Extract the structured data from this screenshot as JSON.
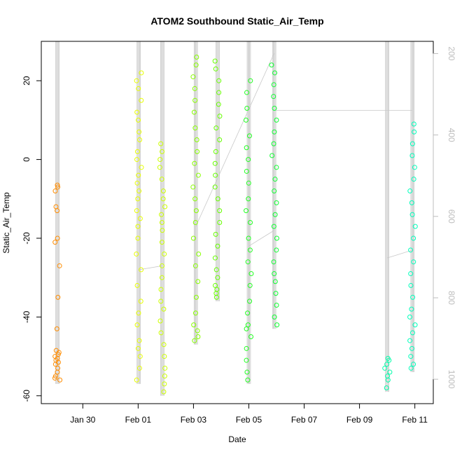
{
  "chart_data": {
    "type": "scatter",
    "title": "ATOM2 Southbound Static_Air_Temp",
    "xlabel": "Date",
    "ylabel": "Static_Air_Temp",
    "x_range": [
      "2017-01-28T12:00",
      "2017-02-11T16:00"
    ],
    "ylim": [
      -62,
      30
    ],
    "x_ticks": [
      {
        "date": "2017-01-30",
        "label": "Jan 30"
      },
      {
        "date": "2017-02-01",
        "label": "Feb 01"
      },
      {
        "date": "2017-02-03",
        "label": "Feb 03"
      },
      {
        "date": "2017-02-05",
        "label": "Feb 05"
      },
      {
        "date": "2017-02-07",
        "label": "Feb 07"
      },
      {
        "date": "2017-02-09",
        "label": "Feb 09"
      },
      {
        "date": "2017-02-11",
        "label": "Feb 11"
      }
    ],
    "y_ticks": [
      -60,
      -40,
      -20,
      0,
      20
    ],
    "secondary_axis": {
      "description": "pressure (altitude) on right axis, inverted",
      "range": [
        1060,
        170
      ],
      "ticks": [
        200,
        400,
        600,
        800,
        1000
      ],
      "color": "#bdbdbd"
    },
    "grid": false,
    "marker": "open-circle",
    "flights": [
      {
        "time": "2017-01-29T02:00",
        "color": "#ff8c00",
        "temps": [
          -6.5,
          -7,
          -8,
          -12,
          -13,
          -20,
          -21,
          -27,
          -35,
          -43,
          -48.5,
          -49,
          -49.5,
          -50,
          -50.5,
          -51,
          -51.5,
          -52,
          -53,
          -54,
          -55,
          -55.5,
          -56
        ]
      },
      {
        "time": "2017-02-01T00:30",
        "color": "#e6ff00",
        "temps": [
          22,
          20,
          18,
          15,
          12,
          10,
          7,
          5,
          2,
          0,
          -2,
          -4,
          -6,
          -8,
          -10,
          -13,
          -15,
          -17,
          -20,
          -24,
          -28,
          -32,
          -36,
          -39,
          -42,
          -46,
          -48,
          -50,
          -53,
          -56
        ]
      },
      {
        "time": "2017-02-01T21:00",
        "color": "#ccff00",
        "temps": [
          4,
          2,
          0,
          -2,
          -5,
          -8,
          -10,
          -12,
          -14,
          -16,
          -18,
          -21,
          -24,
          -27,
          -30,
          -33,
          -36,
          -38,
          -41,
          -44,
          -47,
          -50,
          -53,
          -55,
          -57,
          -59
        ]
      },
      {
        "time": "2017-02-03T02:00",
        "color": "#88ff00",
        "temps": [
          26,
          24,
          21,
          18,
          15,
          12,
          8,
          5,
          2,
          -1,
          -4,
          -7,
          -10,
          -13,
          -16,
          -20,
          -24,
          -27,
          -31,
          -35,
          -39,
          -42,
          -43.5,
          -45,
          -46
        ]
      },
      {
        "time": "2017-02-03T21:00",
        "color": "#66ff00",
        "temps": [
          25,
          23,
          20,
          17,
          14,
          11,
          8,
          5,
          2,
          -1,
          -4,
          -7,
          -10,
          -13,
          -16,
          -19,
          -22,
          -25,
          -28,
          -30,
          -32,
          -33,
          -34,
          -35
        ]
      },
      {
        "time": "2017-02-05T00:00",
        "color": "#22ff22",
        "temps": [
          20,
          17,
          13,
          10,
          6,
          3,
          0,
          -3,
          -6,
          -10,
          -13,
          -16,
          -20,
          -23,
          -26,
          -29,
          -32,
          -36,
          -39,
          -42,
          -43,
          -45,
          -48,
          -51,
          -54,
          -56
        ]
      },
      {
        "time": "2017-02-05T22:00",
        "color": "#11ff33",
        "temps": [
          24,
          22,
          19,
          16,
          13,
          10,
          7,
          4,
          1,
          -2,
          -5,
          -8,
          -11,
          -14,
          -17,
          -20,
          -23,
          -26,
          -29,
          -31,
          -34,
          -37,
          -40,
          -42
        ]
      },
      {
        "time": "2017-02-10T00:00",
        "color": "#00ffaa",
        "temps": [
          -50.5,
          -51,
          -52,
          -53,
          -54,
          -55,
          -56,
          -58
        ]
      },
      {
        "time": "2017-02-10T22:00",
        "color": "#00ffbb",
        "temps": [
          9,
          7,
          4,
          1,
          -2,
          -5,
          -8,
          -11,
          -14,
          -17,
          -20,
          -23,
          -26,
          -29,
          -32,
          -35,
          -38,
          -40,
          -42,
          -44,
          -46,
          -48,
          -50,
          -52,
          -53
        ]
      }
    ]
  }
}
